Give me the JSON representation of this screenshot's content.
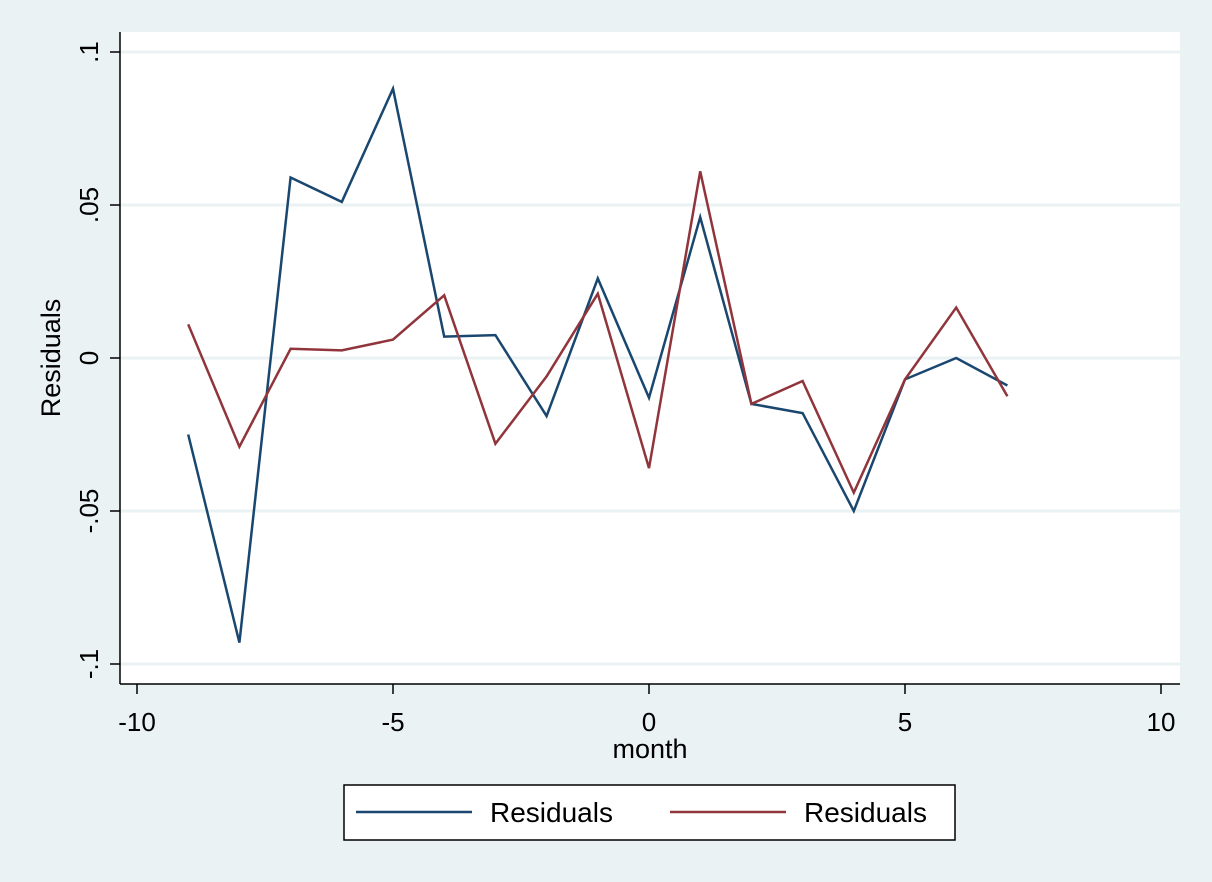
{
  "chart_data": {
    "type": "line",
    "xlabel": "month",
    "ylabel": "Residuals",
    "xlim": [
      -10,
      10
    ],
    "ylim": [
      -0.1,
      0.1
    ],
    "x_ticks": [
      -10,
      -5,
      0,
      5,
      10
    ],
    "x_tick_labels": [
      "-10",
      "-5",
      "0",
      "5",
      "10"
    ],
    "y_ticks": [
      -0.1,
      -0.05,
      0,
      0.05,
      0.1
    ],
    "y_tick_labels": [
      "-.1",
      "-.05",
      "0",
      ".05",
      ".1"
    ],
    "grid": true,
    "legend_position": "bottom",
    "x": [
      -9,
      -8,
      -7,
      -6,
      -5,
      -4,
      -3,
      -2,
      -1,
      0,
      1,
      2,
      3,
      4,
      5,
      6,
      7
    ],
    "series": [
      {
        "name": "Residuals",
        "color": "#1a476f",
        "values": [
          -0.025,
          -0.093,
          0.059,
          0.051,
          0.088,
          0.007,
          0.0075,
          -0.019,
          0.026,
          -0.013,
          0.046,
          -0.015,
          -0.018,
          -0.05,
          -0.007,
          0.0,
          -0.009
        ]
      },
      {
        "name": "Residuals",
        "color": "#90353b",
        "values": [
          0.011,
          -0.029,
          0.003,
          0.0025,
          0.006,
          0.0205,
          -0.028,
          -0.006,
          0.021,
          -0.036,
          0.061,
          -0.015,
          -0.0075,
          -0.044,
          -0.007,
          0.0165,
          -0.0125
        ]
      }
    ]
  }
}
